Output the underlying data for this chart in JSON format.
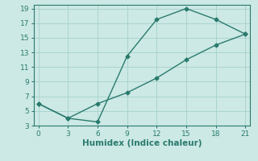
{
  "xlabel": "Humidex (Indice chaleur)",
  "line1_x": [
    0,
    3,
    6,
    9,
    12,
    15,
    18,
    21
  ],
  "line1_y": [
    6,
    4,
    3.5,
    12.5,
    17.5,
    19,
    17.5,
    15.5
  ],
  "line2_x": [
    0,
    3,
    6,
    9,
    12,
    15,
    18,
    21
  ],
  "line2_y": [
    6,
    4,
    6,
    7.5,
    9.5,
    12,
    14,
    15.5
  ],
  "line_color": "#2a7a6e",
  "bg_color": "#cce9e5",
  "grid_color": "#aad4ce",
  "xlim": [
    -0.5,
    21.5
  ],
  "ylim": [
    3,
    19.5
  ],
  "xticks": [
    0,
    3,
    6,
    9,
    12,
    15,
    18,
    21
  ],
  "yticks": [
    3,
    5,
    7,
    9,
    11,
    13,
    15,
    17,
    19
  ],
  "marker": "D",
  "marker_size": 2.5,
  "linewidth": 1.0,
  "tick_fontsize": 6.5,
  "label_fontsize": 7.5
}
